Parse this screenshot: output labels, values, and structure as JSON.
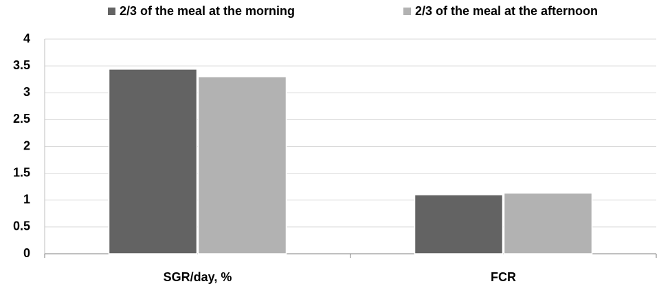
{
  "chart_data": {
    "type": "bar",
    "categories": [
      "SGR/day, %",
      "FCR"
    ],
    "series": [
      {
        "name": "2/3 of the meal at the morning",
        "color": "#636363",
        "values": [
          3.44,
          1.1
        ]
      },
      {
        "name": "2/3 of the meal at the afternoon",
        "color": "#b2b2b2",
        "values": [
          3.3,
          1.13
        ]
      }
    ],
    "ylim": [
      0,
      4
    ],
    "yticks": [
      0,
      0.5,
      1,
      1.5,
      2,
      2.5,
      3,
      3.5,
      4
    ],
    "grid": true,
    "legend": "top"
  }
}
